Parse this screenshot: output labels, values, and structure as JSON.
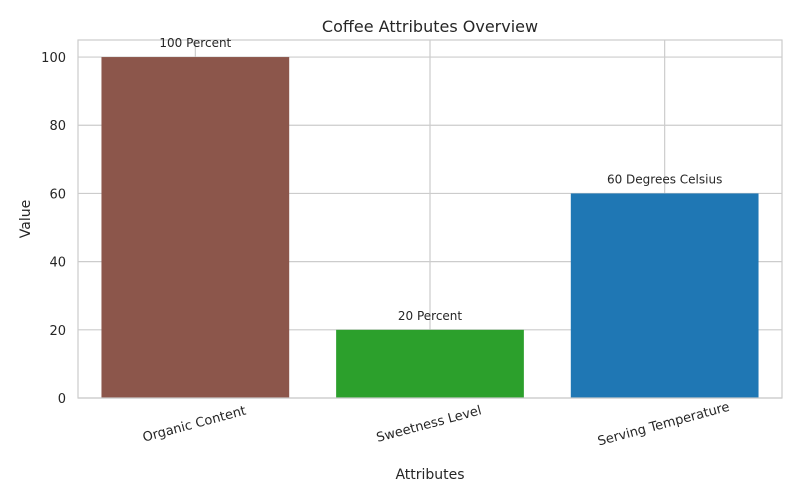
{
  "chart_data": {
    "type": "bar",
    "title": "Coffee Attributes Overview",
    "xlabel": "Attributes",
    "ylabel": "Value",
    "categories": [
      "Organic Content",
      "Sweetness Level",
      "Serving Temperature"
    ],
    "values": [
      100,
      20,
      60
    ],
    "data_labels": [
      "100 Percent",
      "20 Percent",
      "60 Degrees Celsius"
    ],
    "colors": [
      "#8c564b",
      "#2ca02c",
      "#1f77b4"
    ],
    "ylim": [
      0,
      105
    ],
    "yticks": [
      0,
      20,
      40,
      60,
      80,
      100
    ],
    "grid": true,
    "xtick_rotation_deg": 15
  }
}
